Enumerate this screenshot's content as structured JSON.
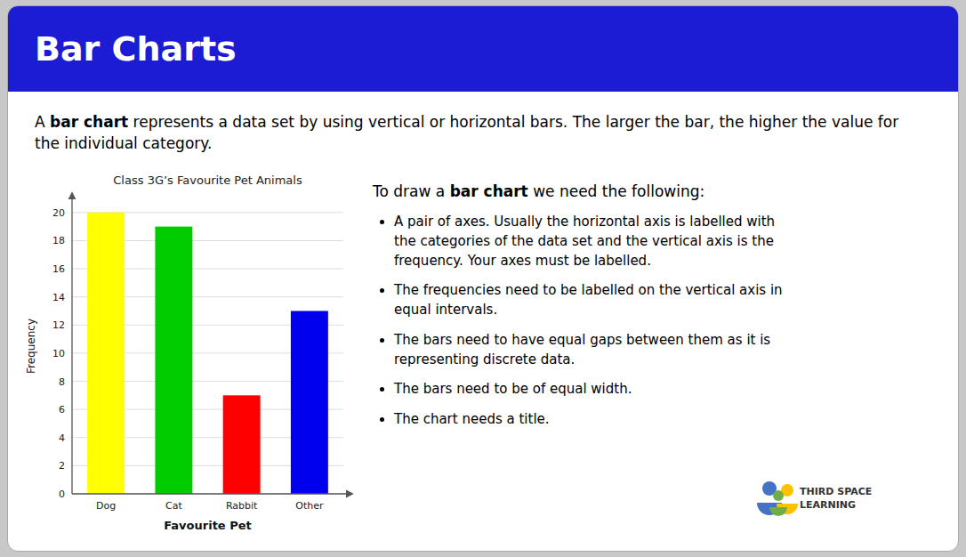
{
  "chart_data": {
    "type": "bar",
    "title": "Class 3G’s Favourite Pet Animals",
    "categories": [
      "Dog",
      "Cat",
      "Rabbit",
      "Other"
    ],
    "values": [
      20,
      19,
      7,
      13
    ],
    "colors": [
      "#FFFF00",
      "#00CC00",
      "#FF0000",
      "#0000EE"
    ],
    "xlabel": "Favourite Pet",
    "ylabel": "Frequency",
    "ylim": [
      0,
      21
    ],
    "yticks": [
      0,
      2,
      4,
      6,
      8,
      10,
      12,
      14,
      16,
      18,
      20
    ],
    "grid": true
  },
  "page": {
    "title": "Bar Charts",
    "header_color": "#1c1cd4",
    "description": [
      {
        "text": "A "
      },
      {
        "text": "bar chart",
        "bold": true
      },
      {
        "text": " represents a data set by using vertical or horizontal bars. The larger the bar, the higher the value for the individual category."
      }
    ],
    "intro": [
      {
        "text": "To draw a "
      },
      {
        "text": "bar chart",
        "bold": true
      },
      {
        "text": " we need the following:"
      }
    ],
    "bullet_points": [
      "A pair of axes. Usually the horizontal axis is labelled with\nthe categories of the data set and the vertical axis is the\nfrequency. Your axes must be labelled.",
      "The frequencies need to be labelled on the vertical axis in\nequal intervals.",
      "The bars need to have equal gaps between them as it is\nrepresenting discrete data.",
      "The bars need to be of equal width.",
      "The chart needs a title."
    ],
    "logo_text": "THIRD SPACE\nLEARNING"
  }
}
